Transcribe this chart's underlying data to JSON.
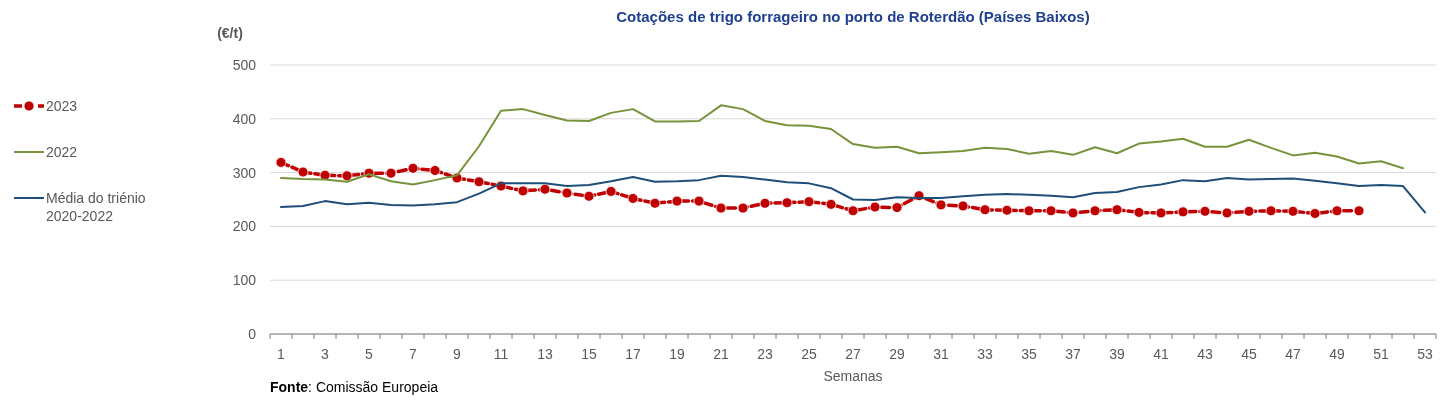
{
  "chart_data": {
    "type": "line",
    "title": "Cotações de trigo forrageiro no porto de Roterdão (Países Baixos)",
    "ylabel": "(€/t)",
    "xlabel": "Semanas",
    "annotations": [
      "Fonte: Comissão Europeia"
    ],
    "xlim": [
      0.5,
      53.5
    ],
    "xticks": [
      1,
      3,
      5,
      7,
      9,
      11,
      13,
      15,
      17,
      19,
      21,
      23,
      25,
      27,
      29,
      31,
      33,
      35,
      37,
      39,
      41,
      43,
      45,
      47,
      49,
      51,
      53
    ],
    "ylim": [
      0,
      500
    ],
    "yticks": [
      0,
      100,
      200,
      300,
      400,
      500
    ],
    "grid": "y",
    "legend": "left",
    "series": [
      {
        "name": "2023",
        "color": "#c00000",
        "marker": "circle",
        "line_style": "dashed",
        "x": [
          1,
          2,
          3,
          4,
          5,
          6,
          7,
          8,
          9,
          10,
          11,
          12,
          13,
          14,
          15,
          16,
          17,
          18,
          19,
          20,
          21,
          22,
          23,
          24,
          25,
          26,
          27,
          28,
          29,
          30,
          31,
          32,
          33,
          34,
          35,
          36,
          37,
          38,
          39,
          40,
          41,
          42,
          43,
          44,
          45,
          46,
          47,
          48,
          49,
          50
        ],
        "values": [
          319,
          301,
          295,
          294,
          299,
          299,
          308,
          304,
          290,
          283,
          275,
          266,
          269,
          262,
          256,
          265,
          252,
          243,
          247,
          247,
          234,
          234,
          243,
          244,
          246,
          241,
          229,
          236,
          235,
          257,
          240,
          238,
          231,
          230,
          229,
          229,
          225,
          229,
          231,
          226,
          225,
          227,
          228,
          225,
          228,
          229,
          228,
          224,
          229,
          229
        ]
      },
      {
        "name": "2022",
        "color": "#77933c",
        "marker": "none",
        "line_style": "solid",
        "x": [
          1,
          2,
          3,
          4,
          5,
          6,
          7,
          8,
          9,
          10,
          11,
          12,
          13,
          14,
          15,
          16,
          17,
          18,
          19,
          20,
          21,
          22,
          23,
          24,
          25,
          26,
          27,
          28,
          29,
          30,
          31,
          32,
          33,
          34,
          35,
          36,
          37,
          38,
          39,
          40,
          41,
          42,
          43,
          44,
          45,
          46,
          47,
          48,
          49,
          50,
          51,
          52
        ],
        "values": [
          290,
          288,
          287,
          283,
          297,
          284,
          278,
          286,
          295,
          349,
          415,
          418,
          407,
          397,
          396,
          411,
          418,
          395,
          395,
          396,
          425,
          418,
          396,
          388,
          387,
          381,
          353,
          346,
          348,
          336,
          338,
          340,
          346,
          344,
          335,
          340,
          333,
          347,
          336,
          354,
          358,
          363,
          348,
          348,
          361,
          346,
          332,
          337,
          330,
          317,
          321,
          308
        ]
      },
      {
        "name": "Média do triénio 2020-2022",
        "color": "#1f4e79",
        "marker": "none",
        "line_style": "solid",
        "x": [
          1,
          2,
          3,
          4,
          5,
          6,
          7,
          8,
          9,
          10,
          11,
          12,
          13,
          14,
          15,
          16,
          17,
          18,
          19,
          20,
          21,
          22,
          23,
          24,
          25,
          26,
          27,
          28,
          29,
          30,
          31,
          32,
          33,
          34,
          35,
          36,
          37,
          38,
          39,
          40,
          41,
          42,
          43,
          44,
          45,
          46,
          47,
          48,
          49,
          50,
          51,
          52,
          53
        ],
        "values": [
          236,
          238,
          247,
          241,
          244,
          240,
          239,
          241,
          245,
          261,
          280,
          280,
          280,
          275,
          277,
          284,
          292,
          283,
          284,
          286,
          294,
          292,
          287,
          282,
          280,
          271,
          250,
          249,
          254,
          253,
          253,
          256,
          259,
          260,
          259,
          257,
          254,
          262,
          264,
          273,
          278,
          286,
          284,
          290,
          287,
          288,
          289,
          285,
          280,
          275,
          277,
          275,
          226
        ]
      }
    ]
  }
}
